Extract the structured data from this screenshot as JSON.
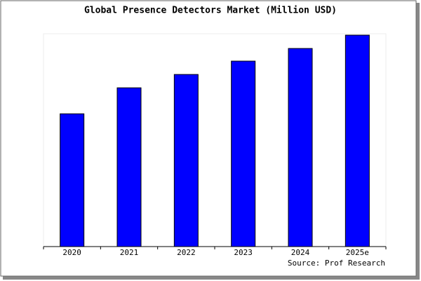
{
  "chart_data": {
    "type": "bar",
    "title": "Global Presence Detectors Market (Million USD)",
    "categories": [
      "2020",
      "2021",
      "2022",
      "2023",
      "2024",
      "2025e"
    ],
    "values": [
      189,
      226,
      245,
      264,
      282,
      301
    ],
    "color": "#0000ff",
    "ylim": [
      0,
      303
    ],
    "source": "Source: Prof Research"
  }
}
